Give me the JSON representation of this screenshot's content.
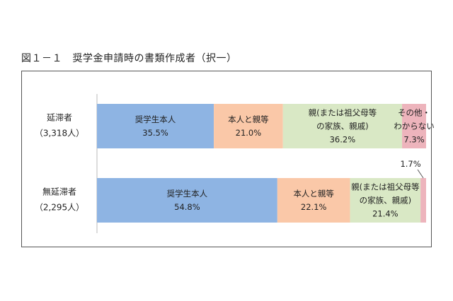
{
  "title": "図１－１　奨学金申請時の書類作成者（択一）",
  "chart_data": {
    "type": "bar",
    "orientation": "horizontal",
    "stacked": "percent",
    "categories": [
      {
        "name": "延滞者",
        "count": "（3,318人）"
      },
      {
        "name": "無延滞者",
        "count": "（2,295人）"
      }
    ],
    "series": [
      {
        "name": "奨学生本人",
        "color": "#8EB4E3",
        "values": [
          35.5,
          54.8
        ],
        "labels": [
          "35.5%",
          "54.8%"
        ]
      },
      {
        "name": "本人と親等",
        "color": "#FAC8A8",
        "values": [
          21.0,
          22.1
        ],
        "labels": [
          "21.0%",
          "22.1%"
        ]
      },
      {
        "name": "親(または祖父母等の家族、親戚)",
        "color": "#D9E8C5",
        "values": [
          36.2,
          21.4
        ],
        "labels": [
          "36.2%",
          "21.4%"
        ]
      },
      {
        "name": "その他・わからない",
        "color": "#EDB4BC",
        "values": [
          7.3,
          1.7
        ],
        "labels": [
          "7.3%",
          "1.7%"
        ]
      }
    ],
    "segment_text": [
      [
        [
          "奨学生本人"
        ],
        [
          "本人と親等"
        ],
        [
          "親(または祖父母等",
          "の家族、親戚)"
        ],
        [
          "その他・",
          "わからない"
        ]
      ],
      [
        [
          "奨学生本人"
        ],
        [
          "本人と親等"
        ],
        [
          "親(または祖父母等",
          "の家族、親戚)"
        ],
        []
      ]
    ],
    "xlim": [
      0,
      100
    ],
    "grid": false,
    "legend": "none"
  }
}
